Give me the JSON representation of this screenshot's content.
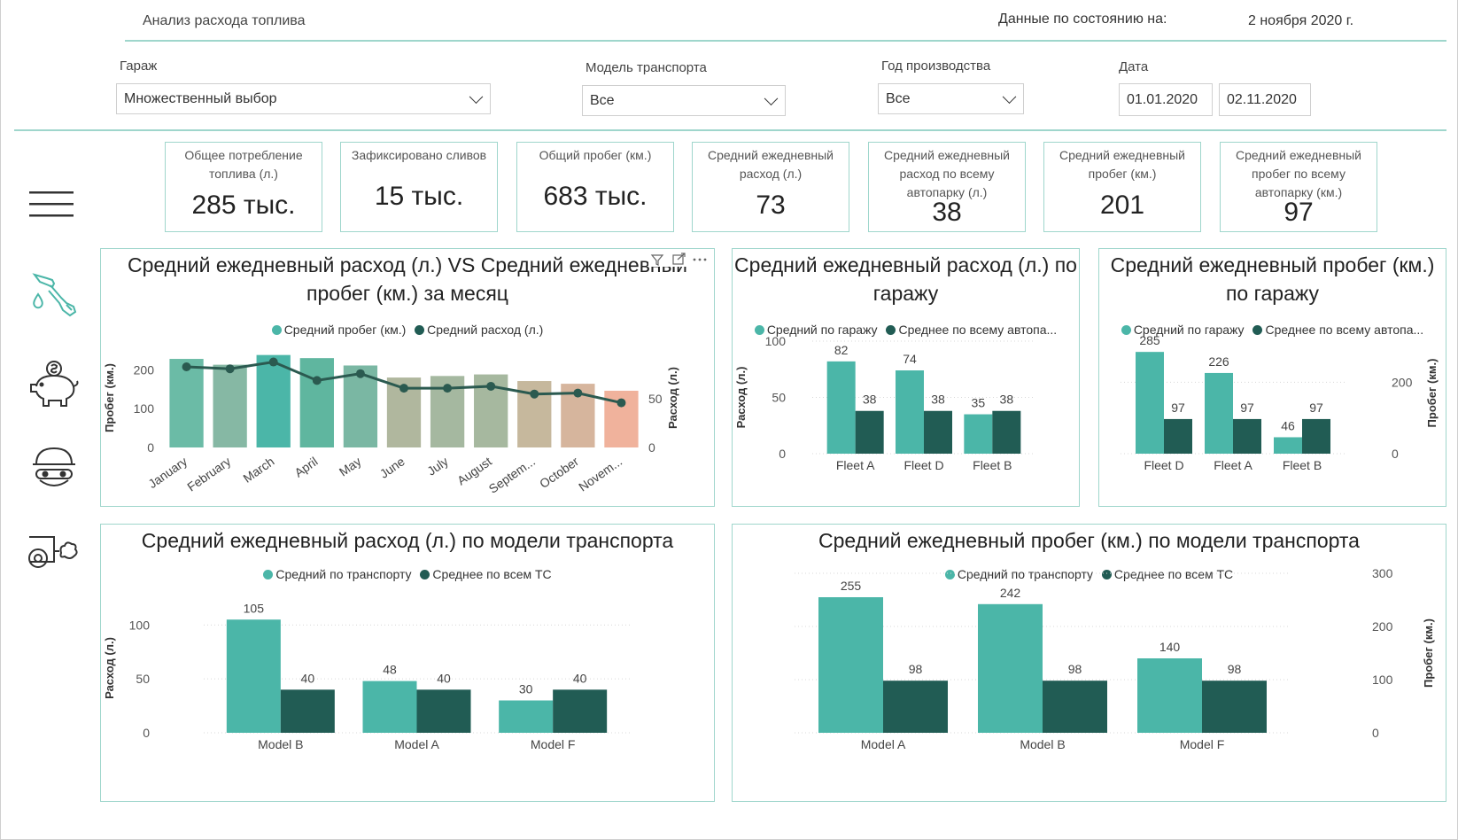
{
  "header": {
    "title": "Анализ расхода топлива",
    "date_label": "Данные по состоянию на:",
    "date_value": "2 ноября 2020 г."
  },
  "filters": {
    "garage": {
      "label": "Гараж",
      "value": "Множественный выбор"
    },
    "model": {
      "label": "Модель транспорта",
      "value": "Все"
    },
    "year": {
      "label": "Год производства",
      "value": "Все"
    },
    "date": {
      "label": "Дата",
      "from": "01.01.2020",
      "to": "02.11.2020"
    }
  },
  "kpis": [
    {
      "label": "Общее потребление топлива (л.)",
      "value": "285 тыс."
    },
    {
      "label": "Зафиксировано сливов",
      "value": "15 тыс."
    },
    {
      "label": "Общий пробег (км.)",
      "value": "683 тыс."
    },
    {
      "label": "Средний ежедневный расход (л.)",
      "value": "73"
    },
    {
      "label": "Средний ежедневный расход по всему автопарку (л.)",
      "value": "38"
    },
    {
      "label": "Средний ежедневный пробег (км.)",
      "value": "201"
    },
    {
      "label": "Средний ежедневный пробег по всему автопарку (км.)",
      "value": "97"
    }
  ],
  "nav_icons": [
    "menu-icon",
    "fuel-pump-icon",
    "piggy-bank-icon",
    "thief-icon",
    "exhaust-icon"
  ],
  "colors": {
    "teal": "#4bb6a8",
    "dark": "#215c54",
    "accent_line": "#9fd6cc",
    "line_series": "#2b5a50"
  },
  "chart_data": [
    {
      "type": "bar",
      "title": "Средний ежедневный расход (л.) VS Средний ежедневный пробег (км.) за месяц",
      "categories": [
        "January",
        "February",
        "March",
        "April",
        "May",
        "June",
        "July",
        "August",
        "Septem...",
        "October",
        "Novem..."
      ],
      "series": [
        {
          "name": "Средний пробег (км.)",
          "type": "bar",
          "axis": "left",
          "values": [
            228,
            213,
            238,
            230,
            211,
            180,
            184,
            188,
            171,
            164,
            146
          ],
          "colors": [
            "#6bbba6",
            "#86b8a4",
            "#4bb6a8",
            "#5fb69f",
            "#7ab7a3",
            "#b0b79e",
            "#a5b8a0",
            "#a6b89f",
            "#c6b89d",
            "#d6b59d",
            "#f0b29c"
          ]
        },
        {
          "name": "Средний расход (л.)",
          "type": "line",
          "axis": "right",
          "values": [
            83,
            81,
            88,
            69,
            76,
            61,
            61,
            63,
            55,
            56,
            46
          ]
        }
      ],
      "ylabel": "Пробег (км.)",
      "y2label": "Расход (л.)",
      "yticks": [
        0,
        100,
        200
      ],
      "y2ticks": [
        0,
        50
      ],
      "ylim": [
        0,
        260
      ],
      "y2lim": [
        0,
        104
      ],
      "legend": "top"
    },
    {
      "type": "bar",
      "title": "Средний ежедневный расход (л.) по гаражу",
      "categories": [
        "Fleet A",
        "Fleet D",
        "Fleet B"
      ],
      "series": [
        {
          "name": "Средний по гаражу",
          "values": [
            82,
            74,
            35
          ]
        },
        {
          "name": "Среднее по всему автопа...",
          "values": [
            38,
            38,
            38
          ]
        }
      ],
      "ylabel": "Расход (л.)",
      "yticks": [
        0,
        50,
        100
      ],
      "ylim": [
        0,
        100
      ],
      "legend": "top"
    },
    {
      "type": "bar",
      "title": "Средний ежедневный пробег (км.) по гаражу",
      "categories": [
        "Fleet D",
        "Fleet A",
        "Fleet B"
      ],
      "series": [
        {
          "name": "Средний по гаражу",
          "values": [
            285,
            226,
            46
          ]
        },
        {
          "name": "Среднее по всему автопа...",
          "values": [
            97,
            97,
            97
          ]
        }
      ],
      "ylabel": "Пробег (км.)",
      "yticks": [
        0,
        200
      ],
      "ylim": [
        0,
        340
      ],
      "axis_side": "right",
      "legend": "top"
    },
    {
      "type": "bar",
      "title": "Средний ежедневный расход (л.) по модели транспорта",
      "categories": [
        "Model B",
        "Model A",
        "Model F"
      ],
      "series": [
        {
          "name": "Средний по транспорту",
          "values": [
            105,
            48,
            30
          ]
        },
        {
          "name": "Среднее по всем ТС",
          "values": [
            40,
            40,
            40
          ]
        }
      ],
      "ylabel": "Расход (л.)",
      "yticks": [
        0,
        50,
        100
      ],
      "ylim": [
        0,
        120
      ],
      "legend": "top"
    },
    {
      "type": "bar",
      "title": "Средний ежедневный пробег (км.) по модели транспорта",
      "categories": [
        "Model A",
        "Model B",
        "Model F"
      ],
      "series": [
        {
          "name": "Средний по транспорту",
          "values": [
            255,
            242,
            140
          ]
        },
        {
          "name": "Среднее по всем ТС",
          "values": [
            98,
            98,
            98
          ]
        }
      ],
      "ylabel": "Пробег (км.)",
      "yticks": [
        0,
        100,
        200,
        300
      ],
      "ylim": [
        0,
        300
      ],
      "axis_side": "right",
      "legend": "top"
    }
  ]
}
